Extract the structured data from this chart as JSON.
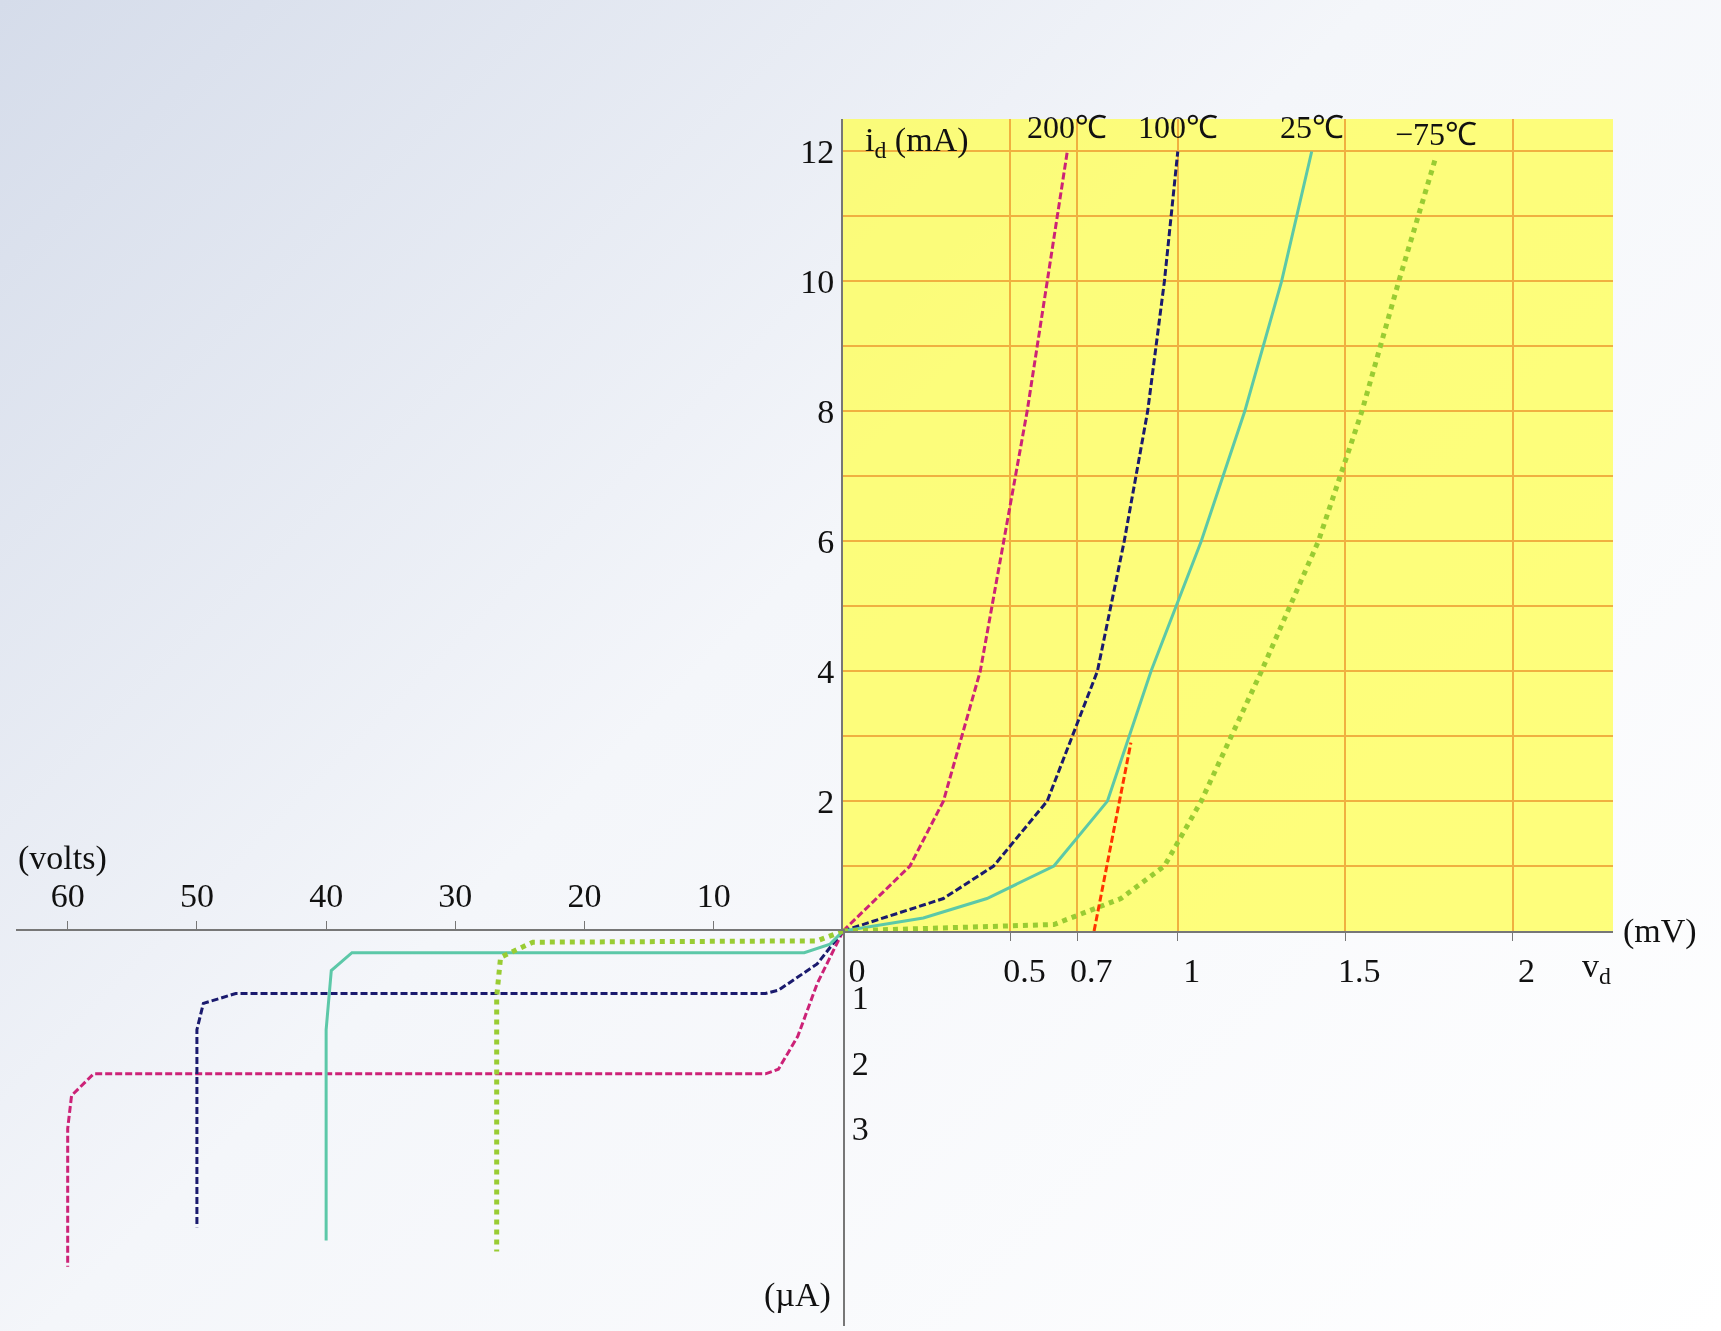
{
  "chart_data": [
    {
      "type": "line",
      "xlabel": "v$_{d}$",
      "ylabel": "i$_{d}$ (mA)",
      "xlim": [
        0,
        2.3
      ],
      "ylim": [
        0,
        12.5
      ],
      "xticks": [
        0,
        0.5,
        0.7,
        1,
        1.5,
        2
      ],
      "yticks": [
        {
          "value": 1,
          "label": null
        },
        2,
        {
          "value": 3,
          "label": null
        },
        4,
        {
          "value": 5,
          "label": null
        },
        6,
        {
          "value": 7,
          "label": null
        },
        8,
        {
          "value": 9,
          "label": null
        },
        10,
        {
          "value": 11,
          "label": null
        },
        12
      ],
      "grid": true,
      "legend": false,
      "marker": "none",
      "annotations": [
        "(mV)"
      ],
      "series": [
        {
          "name": "200℃",
          "color": "#cc2277",
          "line_style": "dashed",
          "x": [
            0,
            0.1,
            0.2,
            0.3,
            0.41,
            0.48,
            0.55,
            0.61,
            0.67
          ],
          "values": [
            0,
            0.5,
            1,
            2,
            4,
            6,
            8,
            10,
            12
          ]
        },
        {
          "name": "100℃",
          "color": "#1a1a6e",
          "line_style": "dashed",
          "x": [
            0,
            0.3,
            0.45,
            0.61,
            0.76,
            0.84,
            0.91,
            0.96,
            1.0
          ],
          "values": [
            0,
            0.5,
            1,
            2,
            4,
            6,
            8,
            10,
            12
          ]
        },
        {
          "name": "25℃",
          "color": "#5cc8a8",
          "line_style": "solid",
          "x": [
            0,
            0.24,
            0.43,
            0.63,
            0.79,
            0.92,
            1.07,
            1.2,
            1.31,
            1.4
          ],
          "values": [
            0,
            0.2,
            0.5,
            1,
            2,
            4,
            6,
            8,
            10,
            12
          ]
        },
        {
          "name": "−75℃",
          "color": "#99cc33",
          "line_style": "dotted",
          "x": [
            0,
            0.63,
            0.83,
            0.96,
            1.07,
            1.25,
            1.42,
            1.55,
            1.66,
            1.77
          ],
          "values": [
            0,
            0.1,
            0.5,
            1,
            2,
            4,
            6,
            8,
            10,
            11.9
          ]
        },
        {
          "color": "#ff3300",
          "line_style": "dashed",
          "x": [
            0.75,
            0.86
          ],
          "values": [
            0,
            2.9
          ]
        }
      ]
    },
    {
      "type": "line",
      "xlabel": "(volts)",
      "ylabel": "(µA)",
      "xlim": [
        64,
        0
      ],
      "ylim": [
        -6,
        0
      ],
      "xticks": [
        60,
        50,
        40,
        30,
        20,
        10
      ],
      "yticks": [
        {
          "value": -1,
          "label": "1"
        },
        {
          "value": -2,
          "label": "2"
        },
        {
          "value": -3,
          "label": "3"
        }
      ],
      "legend": false,
      "marker": "none",
      "series": [
        {
          "color": "#cc2277",
          "line_style": "dashed",
          "x": [
            0,
            2,
            3.5,
            5,
            6,
            58,
            59.7,
            60,
            60
          ],
          "values": [
            0,
            -0.8,
            -1.6,
            -2.1,
            -2.17,
            -2.17,
            -2.5,
            -3,
            -5.1
          ]
        },
        {
          "color": "#1a1a6e",
          "line_style": "dashed",
          "x": [
            0,
            2,
            5,
            6,
            47,
            49.5,
            50,
            50
          ],
          "values": [
            0,
            -0.5,
            -0.9,
            -0.95,
            -0.95,
            -1.1,
            -1.5,
            -4.5
          ]
        },
        {
          "color": "#5cc8a8",
          "line_style": "solid",
          "x": [
            0,
            1,
            3,
            38,
            39.6,
            40,
            40
          ],
          "values": [
            0,
            -0.2,
            -0.33,
            -0.33,
            -0.6,
            -1.5,
            -4.7
          ]
        },
        {
          "color": "#99cc33",
          "line_style": "dotted",
          "x": [
            0,
            2,
            24,
            26.5,
            26.8,
            26.8
          ],
          "values": [
            0,
            -0.15,
            -0.17,
            -0.4,
            -1,
            -4.87
          ]
        }
      ]
    }
  ]
}
